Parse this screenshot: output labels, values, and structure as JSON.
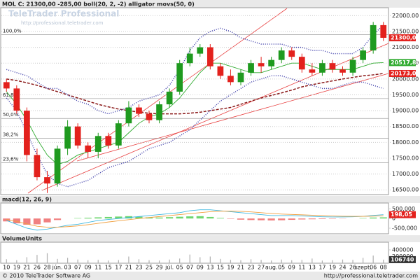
{
  "header": "MOL C: 21300,00 -285,00 boll(20, 2, -2) alligator movs(50, 0)",
  "watermark": {
    "title": "TeleTrader Professional",
    "url": "http://professional.teletrader.com"
  },
  "footer": {
    "copyright": "© 2010 TeleTrader Software AG",
    "url": "http://professional.teletrader.com"
  },
  "chart_data": [
    {
      "type": "candlestick",
      "categories": [
        "10",
        "19",
        "21",
        "26",
        "28",
        "jún.",
        "03",
        "07",
        "09",
        "11",
        "15",
        "17",
        "21",
        "23",
        "25",
        "29",
        "júl.",
        "05",
        "07",
        "09",
        "13",
        "15",
        "19",
        "21",
        "23",
        "27",
        "aug.",
        "05",
        "09",
        "11",
        "13",
        "17",
        "19",
        "24",
        "26",
        "szept.",
        "06",
        "08"
      ],
      "open": [
        19900,
        19700,
        19000,
        17600,
        16900,
        16700,
        17800,
        18500,
        17900,
        17700,
        18200,
        17900,
        18600,
        19100,
        18900,
        18700,
        19200,
        19600,
        20500,
        20800,
        21000,
        20400,
        20100,
        19900,
        20200,
        20500,
        20400,
        20600,
        20900,
        20700,
        20300,
        20200,
        20500,
        20300,
        20200,
        20600,
        20900,
        21700
      ],
      "high": [
        20000,
        19800,
        19100,
        17800,
        17100,
        17900,
        18700,
        18600,
        18000,
        18300,
        18300,
        18700,
        19300,
        19200,
        19000,
        19300,
        19700,
        20600,
        21000,
        21100,
        21100,
        20500,
        20300,
        20300,
        20600,
        20700,
        20700,
        21000,
        21000,
        20800,
        20500,
        20600,
        20600,
        20400,
        20700,
        21000,
        21800,
        21800
      ],
      "low": [
        19600,
        18900,
        17400,
        16800,
        16400,
        16600,
        17600,
        17800,
        17500,
        17500,
        17800,
        17800,
        18500,
        18800,
        18600,
        18600,
        19100,
        19500,
        20400,
        20700,
        20300,
        20000,
        19800,
        19800,
        20100,
        20200,
        20300,
        20500,
        20600,
        20200,
        20100,
        20100,
        20200,
        20100,
        20100,
        20500,
        20800,
        21200
      ],
      "close": [
        19700,
        19000,
        17600,
        16900,
        16700,
        17800,
        18500,
        17900,
        17700,
        18200,
        17900,
        18600,
        19100,
        18900,
        18700,
        19200,
        19600,
        20500,
        20800,
        21000,
        20400,
        20100,
        19900,
        20200,
        20500,
        20400,
        20600,
        20900,
        20700,
        20300,
        20200,
        20500,
        20300,
        20200,
        20600,
        20900,
        21700,
        21300
      ],
      "up_color": "#1f9a1f",
      "down_color": "#e3211d",
      "lines": [
        {
          "color": "#8b1a1a",
          "dash": true,
          "values": [
            20000,
            19950,
            19880,
            19800,
            19700,
            19600,
            19500,
            19400,
            19300,
            19200,
            19120,
            19050,
            19000,
            18950,
            18920,
            18900,
            18900,
            18900,
            18920,
            18950,
            19000,
            19050,
            19100,
            19200,
            19300,
            19400,
            19480,
            19560,
            19650,
            19750,
            19820,
            19880,
            19940,
            20000,
            20050,
            20100,
            20130,
            20173
          ]
        },
        {
          "color": "#3a3aa8",
          "dotted": true,
          "values": [
            20300,
            20200,
            20100,
            19900,
            19700,
            19700,
            19500,
            19300,
            19200,
            19000,
            18900,
            19000,
            19100,
            19300,
            19400,
            19500,
            19800,
            20300,
            20900,
            21300,
            21500,
            21600,
            21500,
            21300,
            21200,
            21100,
            21100,
            21100,
            21000,
            21000,
            20900,
            20900,
            20800,
            20800,
            20800,
            21000,
            21400,
            21700
          ]
        },
        {
          "color": "#3a3aa8",
          "dotted": true,
          "values": [
            19400,
            19000,
            18300,
            17600,
            17000,
            16700,
            16600,
            16700,
            16800,
            17000,
            17200,
            17300,
            17400,
            17600,
            17800,
            17900,
            18000,
            18200,
            18400,
            18700,
            19000,
            19300,
            19500,
            19700,
            19900,
            20000,
            20100,
            20100,
            20000,
            19900,
            19800,
            19700,
            19700,
            19800,
            19900,
            19900,
            19800,
            19700
          ]
        },
        {
          "color": "#2eaa2e",
          "values": [
            19600,
            19200,
            18700,
            18100,
            17600,
            17300,
            17400,
            17600,
            17700,
            17800,
            17900,
            18000,
            18300,
            18600,
            18800,
            18900,
            19100,
            19400,
            19800,
            20200,
            20500,
            20500,
            20400,
            20300,
            20200,
            20200,
            20300,
            20400,
            20500,
            20500,
            20400,
            20300,
            20300,
            20300,
            20300,
            20400,
            20500,
            20517.8
          ]
        }
      ],
      "current_labels": [
        {
          "value": 21300,
          "label": "21300,00",
          "color": "#e3211d"
        },
        {
          "value": 20517.8,
          "label": "20517,80",
          "color": "#2eaa2e"
        },
        {
          "value": 20173,
          "label": "20173,00",
          "color": "#e3211d"
        }
      ],
      "fib_levels": [
        {
          "value": 21400,
          "label": "100,0%"
        },
        {
          "value": 19380,
          "label": "61,8%"
        },
        {
          "value": 18755,
          "label": "50,0%"
        },
        {
          "value": 18130,
          "label": "38,2%"
        },
        {
          "value": 17360,
          "label": "23,6%"
        }
      ],
      "ylim": [
        16350,
        22250
      ],
      "yticks": [
        {
          "value": 16500,
          "label": "16500.00"
        },
        {
          "value": 17000,
          "label": "17000.00"
        },
        {
          "value": 17500,
          "label": "17500.00"
        },
        {
          "value": 18000,
          "label": "18000.00"
        },
        {
          "value": 18500,
          "label": "18500.00"
        },
        {
          "value": 19000,
          "label": "19000.00"
        },
        {
          "value": 19500,
          "label": "19500.00"
        },
        {
          "value": 20000,
          "label": "20000.00"
        },
        {
          "value": 20500,
          "label": "20500.00"
        },
        {
          "value": 21000,
          "label": "21000.00"
        },
        {
          "value": 21500,
          "label": "21500.00"
        },
        {
          "value": 22000,
          "label": "22000.00"
        }
      ],
      "grid": true
    },
    {
      "type": "macd",
      "title": "macd(12, 26, 9)",
      "histogram": [
        -150,
        -250,
        -320,
        -300,
        -200,
        -80,
        0,
        20,
        40,
        60,
        80,
        100,
        120,
        90,
        60,
        50,
        70,
        90,
        110,
        120,
        80,
        30,
        -20,
        -60,
        -80,
        -90,
        -100,
        -90,
        -70,
        -50,
        -40,
        -30,
        -20,
        -10,
        0,
        20,
        50,
        60
      ],
      "histogram_colors": [
        "#f08080",
        "#6fd66f"
      ],
      "series": [
        {
          "color": "#3fb8e0",
          "values": [
            -100,
            -300,
            -500,
            -600,
            -550,
            -450,
            -350,
            -300,
            -200,
            -100,
            -50,
            0,
            50,
            100,
            150,
            200,
            250,
            300,
            400,
            450,
            450,
            400,
            350,
            300,
            250,
            200,
            150,
            150,
            150,
            130,
            110,
            90,
            80,
            80,
            90,
            110,
            160,
            198.05
          ]
        },
        {
          "color": "#f0a040",
          "values": [
            -50,
            -150,
            -280,
            -400,
            -450,
            -450,
            -420,
            -380,
            -320,
            -250,
            -180,
            -120,
            -60,
            0,
            50,
            100,
            150,
            200,
            250,
            300,
            350,
            380,
            380,
            370,
            340,
            300,
            260,
            230,
            210,
            190,
            170,
            150,
            130,
            115,
            110,
            110,
            120,
            140
          ]
        }
      ],
      "current_label": {
        "value": 198.05,
        "label": "198,05",
        "color": "#e3211d"
      },
      "ylim": [
        -790,
        800
      ],
      "yticks": [
        {
          "value": 500,
          "label": "500,000"
        },
        0,
        {
          "value": -500,
          "label": "-500,000"
        }
      ]
    },
    {
      "type": "bar",
      "title": "VolumeUnits",
      "color": "#b0b0b0",
      "values": [
        120000,
        90000,
        180000,
        250000,
        300000,
        130000,
        160000,
        110000,
        90000,
        100000,
        80000,
        95000,
        200000,
        120000,
        90000,
        80000,
        110000,
        140000,
        260000,
        180000,
        200000,
        130000,
        100000,
        90000,
        120000,
        100000,
        80000,
        110000,
        90000,
        100000,
        140000,
        80000,
        90000,
        110000,
        100000,
        160000,
        230000,
        106740
      ],
      "current_value": 106740,
      "ylim": [
        0,
        630000
      ],
      "yticks": [
        200000,
        400000
      ]
    }
  ]
}
